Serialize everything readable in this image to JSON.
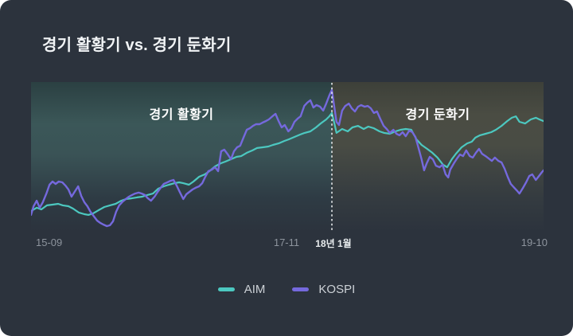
{
  "title": "경기 활황기 vs. 경기 둔화기",
  "x_axis": {
    "ticks": [
      "15-09",
      "17-11",
      "19-10"
    ],
    "divider_label": "18년 1월"
  },
  "chart_data": {
    "type": "line",
    "title": "경기 활황기 vs. 경기 둔화기",
    "encoding_note": "t = percent of timeline (15-09 to 19-10); v = percent of plot height, no y-axis labels shown in chart",
    "grid": false,
    "legend_position": "bottom-center",
    "x_ticks": [
      {
        "label": "15-09",
        "t": 1.0,
        "emphasis": false
      },
      {
        "label": "17-11",
        "t": 49.8,
        "emphasis": false
      },
      {
        "label": "18년 1월",
        "t": 59.0,
        "emphasis": true
      },
      {
        "label": "19-10",
        "t": 98.4,
        "emphasis": false
      }
    ],
    "divider_t": 58.7,
    "divider_color": "#f2f4f5",
    "phases": [
      {
        "label": "경기 활황기",
        "from_t": 0,
        "to_t": 58.7
      },
      {
        "label": "경기 둔화기",
        "from_t": 58.7,
        "to_t": 100
      }
    ],
    "series": [
      {
        "name": "AIM",
        "color": "#4cc8c0",
        "points": [
          [
            0,
            13.8
          ],
          [
            1.1,
            16
          ],
          [
            2,
            14.9
          ],
          [
            3.1,
            17.6
          ],
          [
            4.2,
            18.1
          ],
          [
            5.3,
            18.6
          ],
          [
            6.2,
            17.6
          ],
          [
            7.3,
            17
          ],
          [
            8.2,
            15.4
          ],
          [
            9.3,
            12.8
          ],
          [
            10.4,
            11.7
          ],
          [
            11.2,
            11.2
          ],
          [
            12.1,
            12.2
          ],
          [
            13.2,
            14.4
          ],
          [
            14.3,
            16.5
          ],
          [
            15.4,
            17.6
          ],
          [
            16.5,
            18.6
          ],
          [
            17.6,
            20.7
          ],
          [
            18.5,
            21.8
          ],
          [
            19.6,
            22.3
          ],
          [
            20.7,
            22.9
          ],
          [
            21.7,
            23.4
          ],
          [
            22.7,
            24.5
          ],
          [
            23.8,
            25.5
          ],
          [
            24.8,
            28.7
          ],
          [
            25.9,
            30.3
          ],
          [
            26.9,
            31.4
          ],
          [
            28,
            32.4
          ],
          [
            28.9,
            33
          ],
          [
            29.7,
            32.4
          ],
          [
            30.8,
            31.4
          ],
          [
            31.7,
            33.5
          ],
          [
            32.8,
            36.7
          ],
          [
            33.9,
            38.3
          ],
          [
            34.8,
            40.4
          ],
          [
            35.9,
            43.6
          ],
          [
            37,
            45.7
          ],
          [
            37.9,
            46.8
          ],
          [
            39,
            48.4
          ],
          [
            40.1,
            50
          ],
          [
            41,
            50.5
          ],
          [
            42.1,
            52.7
          ],
          [
            43.2,
            54.3
          ],
          [
            44.1,
            55.9
          ],
          [
            45.2,
            56.4
          ],
          [
            46.3,
            56.9
          ],
          [
            47.2,
            58
          ],
          [
            48.3,
            59
          ],
          [
            49.4,
            60.6
          ],
          [
            50.3,
            61.7
          ],
          [
            51.4,
            63.3
          ],
          [
            52.5,
            64.9
          ],
          [
            53.4,
            66
          ],
          [
            54.5,
            67
          ],
          [
            55.6,
            69.7
          ],
          [
            56.5,
            72.3
          ],
          [
            57.6,
            75
          ],
          [
            58.2,
            77.1
          ],
          [
            58.7,
            79.3
          ],
          [
            59.2,
            72.3
          ],
          [
            59.6,
            66
          ],
          [
            60.7,
            68.6
          ],
          [
            61.8,
            67
          ],
          [
            62.7,
            69.7
          ],
          [
            63.8,
            70.7
          ],
          [
            64.9,
            68.6
          ],
          [
            65.8,
            70.2
          ],
          [
            66.9,
            69.1
          ],
          [
            68,
            67
          ],
          [
            68.9,
            66
          ],
          [
            70,
            65.4
          ],
          [
            71.1,
            67
          ],
          [
            72.1,
            68.1
          ],
          [
            73.1,
            68.6
          ],
          [
            74.2,
            68.1
          ],
          [
            75.2,
            61.7
          ],
          [
            76.2,
            58
          ],
          [
            77.3,
            55.3
          ],
          [
            78.3,
            52.7
          ],
          [
            79.3,
            49.5
          ],
          [
            80.4,
            44.7
          ],
          [
            81.2,
            43.1
          ],
          [
            82.1,
            48.4
          ],
          [
            82.9,
            52.1
          ],
          [
            84,
            56.4
          ],
          [
            85.1,
            59
          ],
          [
            86,
            60.1
          ],
          [
            86.7,
            62.8
          ],
          [
            87.6,
            64.4
          ],
          [
            88.7,
            65.4
          ],
          [
            89.8,
            66.5
          ],
          [
            90.7,
            68.1
          ],
          [
            91.8,
            70.7
          ],
          [
            92.9,
            73.9
          ],
          [
            93.8,
            76.1
          ],
          [
            94.6,
            77.1
          ],
          [
            95.3,
            73.4
          ],
          [
            96.4,
            72.3
          ],
          [
            97.5,
            75
          ],
          [
            98.5,
            76.1
          ],
          [
            99.2,
            75
          ],
          [
            100,
            73.9
          ]
        ]
      },
      {
        "name": "KOSPI",
        "color": "#7569dd",
        "points": [
          [
            0,
            11.2
          ],
          [
            0.5,
            17
          ],
          [
            1.1,
            20.7
          ],
          [
            1.7,
            16
          ],
          [
            2.3,
            19.7
          ],
          [
            3,
            25.5
          ],
          [
            3.6,
            31.4
          ],
          [
            4.2,
            33.5
          ],
          [
            4.8,
            31.9
          ],
          [
            5.4,
            33.5
          ],
          [
            6.1,
            33
          ],
          [
            6.7,
            30.9
          ],
          [
            7.3,
            28.2
          ],
          [
            7.9,
            23.4
          ],
          [
            8.5,
            26.6
          ],
          [
            9.2,
            30.3
          ],
          [
            9.8,
            23.9
          ],
          [
            10.4,
            19.7
          ],
          [
            11,
            17
          ],
          [
            11.6,
            13.3
          ],
          [
            12.3,
            10.1
          ],
          [
            12.9,
            7.4
          ],
          [
            13.5,
            5.9
          ],
          [
            14.1,
            4.8
          ],
          [
            14.8,
            3.7
          ],
          [
            15.4,
            4.3
          ],
          [
            16,
            6.9
          ],
          [
            16.6,
            13.3
          ],
          [
            17.2,
            17.6
          ],
          [
            17.9,
            20.2
          ],
          [
            18.5,
            21.8
          ],
          [
            19.1,
            23.4
          ],
          [
            19.7,
            24.5
          ],
          [
            20.3,
            25.5
          ],
          [
            21,
            26.1
          ],
          [
            21.6,
            25.5
          ],
          [
            22.2,
            24.5
          ],
          [
            22.8,
            22.3
          ],
          [
            23.4,
            20.7
          ],
          [
            24.1,
            23.4
          ],
          [
            24.7,
            26.6
          ],
          [
            25.3,
            29.3
          ],
          [
            25.9,
            31.9
          ],
          [
            26.6,
            33
          ],
          [
            27.2,
            34
          ],
          [
            27.8,
            34.6
          ],
          [
            28.4,
            30.9
          ],
          [
            29,
            26.6
          ],
          [
            29.7,
            21.8
          ],
          [
            30.3,
            25
          ],
          [
            30.9,
            26.6
          ],
          [
            31.5,
            28.2
          ],
          [
            32.1,
            29.3
          ],
          [
            32.8,
            30.3
          ],
          [
            33.4,
            32.4
          ],
          [
            34,
            36.7
          ],
          [
            34.6,
            40.4
          ],
          [
            35.3,
            41.5
          ],
          [
            35.9,
            43.1
          ],
          [
            36.5,
            40.4
          ],
          [
            37.1,
            53.7
          ],
          [
            37.7,
            54.8
          ],
          [
            38.4,
            51.6
          ],
          [
            39,
            48.4
          ],
          [
            39.6,
            53.7
          ],
          [
            40.2,
            56.4
          ],
          [
            40.8,
            57.4
          ],
          [
            41.5,
            63.3
          ],
          [
            42.1,
            68.1
          ],
          [
            42.7,
            69.1
          ],
          [
            43.3,
            70.7
          ],
          [
            43.9,
            71.8
          ],
          [
            44.6,
            71.8
          ],
          [
            45.2,
            72.9
          ],
          [
            45.8,
            73.9
          ],
          [
            46.4,
            75
          ],
          [
            47.1,
            77.1
          ],
          [
            47.7,
            78.7
          ],
          [
            48.3,
            73.9
          ],
          [
            48.9,
            69.7
          ],
          [
            49.5,
            71.3
          ],
          [
            50.2,
            67
          ],
          [
            50.8,
            69.1
          ],
          [
            51.4,
            73.4
          ],
          [
            52,
            75.5
          ],
          [
            52.6,
            77.1
          ],
          [
            53.3,
            84
          ],
          [
            53.9,
            86.2
          ],
          [
            54.5,
            87.8
          ],
          [
            55.1,
            83
          ],
          [
            55.7,
            84.6
          ],
          [
            56.4,
            83.5
          ],
          [
            57,
            80.9
          ],
          [
            57.6,
            85.6
          ],
          [
            58.2,
            91
          ],
          [
            58.7,
            94.7
          ],
          [
            59.2,
            83
          ],
          [
            59.6,
            73.4
          ],
          [
            60.1,
            71.3
          ],
          [
            60.7,
            80.9
          ],
          [
            61.3,
            84
          ],
          [
            62,
            85.6
          ],
          [
            62.6,
            82.4
          ],
          [
            63.2,
            80.3
          ],
          [
            63.8,
            83.5
          ],
          [
            64.4,
            84.6
          ],
          [
            65.1,
            83.5
          ],
          [
            65.7,
            84
          ],
          [
            66.3,
            82.4
          ],
          [
            66.9,
            79.3
          ],
          [
            67.5,
            80.3
          ],
          [
            68.2,
            75
          ],
          [
            68.8,
            70.7
          ],
          [
            69.4,
            68.6
          ],
          [
            70,
            66
          ],
          [
            70.7,
            68.1
          ],
          [
            71.3,
            65.4
          ],
          [
            71.9,
            64.4
          ],
          [
            72.5,
            66.5
          ],
          [
            73.1,
            63.8
          ],
          [
            73.8,
            67.6
          ],
          [
            74.4,
            66.5
          ],
          [
            75,
            63.3
          ],
          [
            75.6,
            55.9
          ],
          [
            76.2,
            48.4
          ],
          [
            76.7,
            41
          ],
          [
            77.2,
            45.7
          ],
          [
            77.8,
            50
          ],
          [
            78.4,
            48.4
          ],
          [
            79,
            44.1
          ],
          [
            79.7,
            43.1
          ],
          [
            80.3,
            44.7
          ],
          [
            80.9,
            38.3
          ],
          [
            81.4,
            36.2
          ],
          [
            81.8,
            41.5
          ],
          [
            82.5,
            45.7
          ],
          [
            83.1,
            48.9
          ],
          [
            83.7,
            51.6
          ],
          [
            84.3,
            50.5
          ],
          [
            84.9,
            54.3
          ],
          [
            85.6,
            50.5
          ],
          [
            86.2,
            49.5
          ],
          [
            86.8,
            52.7
          ],
          [
            87.4,
            55.3
          ],
          [
            88,
            52.1
          ],
          [
            88.7,
            50.5
          ],
          [
            89.3,
            48.9
          ],
          [
            89.9,
            47.3
          ],
          [
            90.5,
            49.5
          ],
          [
            91.2,
            47.3
          ],
          [
            91.8,
            46.3
          ],
          [
            92.4,
            42
          ],
          [
            93,
            36.7
          ],
          [
            93.6,
            31.9
          ],
          [
            94.3,
            29.3
          ],
          [
            94.9,
            27.1
          ],
          [
            95.3,
            25.5
          ],
          [
            96,
            29.3
          ],
          [
            96.6,
            33
          ],
          [
            97.2,
            37.2
          ],
          [
            97.8,
            38.3
          ],
          [
            98.5,
            34.6
          ],
          [
            99.1,
            37.2
          ],
          [
            99.7,
            39.9
          ],
          [
            100,
            41
          ]
        ]
      }
    ]
  }
}
